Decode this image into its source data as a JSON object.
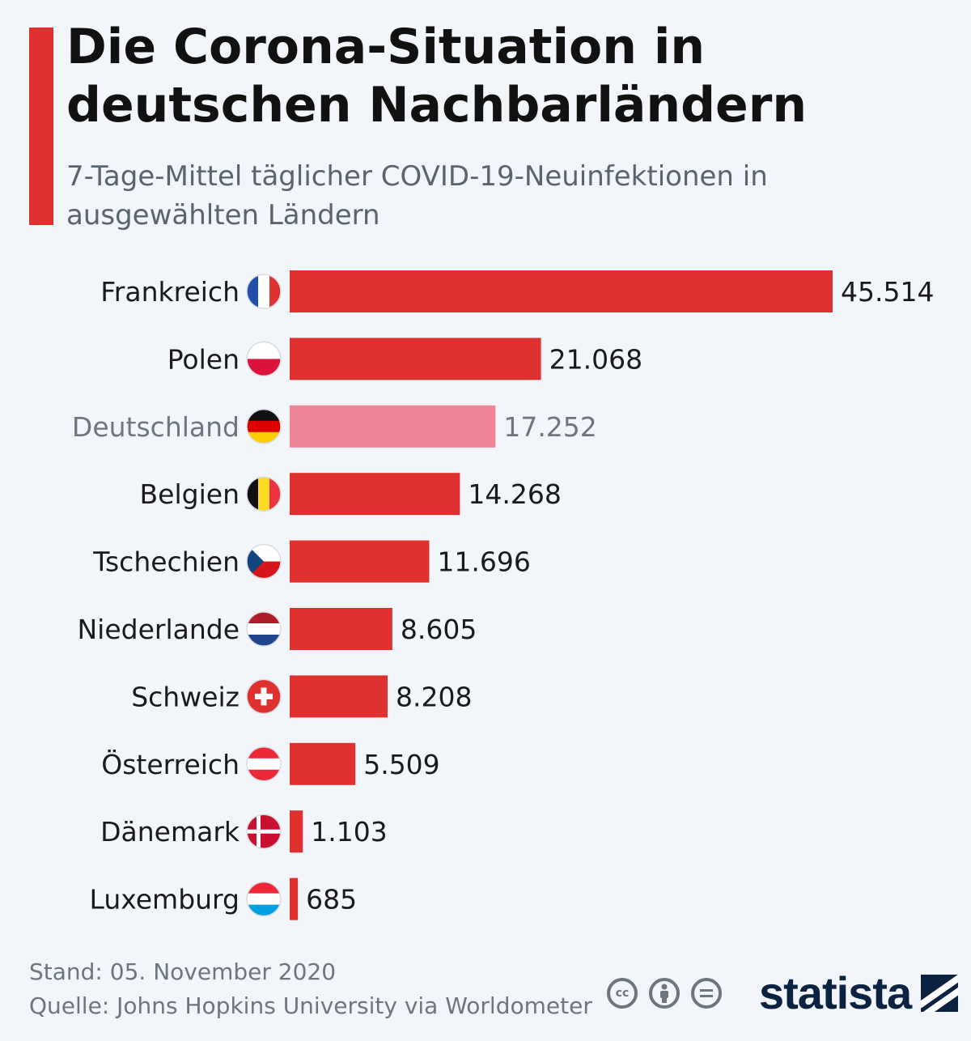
{
  "header": {
    "title": "Die Corona-Situation in deutschen Nachbarländern",
    "subtitle": "7-Tage-Mittel täglicher COVID-19-Neuinfektionen in ausgewählten Ländern"
  },
  "chart_data": {
    "type": "bar",
    "orientation": "horizontal",
    "title": "Die Corona-Situation in deutschen Nachbarländern",
    "subtitle": "7-Tage-Mittel täglicher COVID-19-Neuinfektionen in ausgewählten Ländern",
    "categories": [
      "Frankreich",
      "Polen",
      "Deutschland",
      "Belgien",
      "Tschechien",
      "Niederlande",
      "Schweiz",
      "Österreich",
      "Dänemark",
      "Luxemburg"
    ],
    "values": [
      45514,
      21068,
      17252,
      14268,
      11696,
      8605,
      8208,
      5509,
      1103,
      685
    ],
    "value_labels": [
      "45.514",
      "21.068",
      "17.252",
      "14.268",
      "11.696",
      "8.605",
      "8.208",
      "5.509",
      "1.103",
      "685"
    ],
    "highlight": "Deutschland",
    "flags": [
      "flag-france-icon",
      "flag-poland-icon",
      "flag-germany-icon",
      "flag-belgium-icon",
      "flag-czechia-icon",
      "flag-netherlands-icon",
      "flag-switzerland-icon",
      "flag-austria-icon",
      "flag-denmark-icon",
      "flag-luxembourg-icon"
    ],
    "xlim": [
      0,
      45514
    ],
    "colors": {
      "bar": "#e03131",
      "highlight_bar": "#ef8599",
      "label": "#1a1a1a",
      "highlight_label": "#6d767f"
    }
  },
  "footer": {
    "stand": "Stand: 05. November 2020",
    "source": "Quelle: Johns Hopkins University via Worldometer"
  },
  "license_icons": [
    "cc-icon",
    "attribution-icon",
    "no-derivatives-icon"
  ],
  "brand": {
    "name": "statista"
  }
}
